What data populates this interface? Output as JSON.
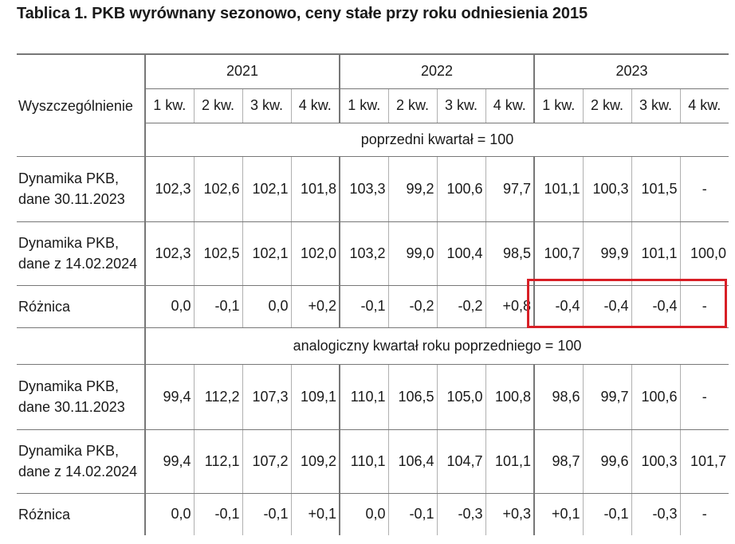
{
  "title": "Tablica 1. PKB wyrównany sezonowo, ceny stałe przy roku odniesienia 2015",
  "header": {
    "description_label": "Wyszczególnienie",
    "years": [
      "2021",
      "2022",
      "2023"
    ],
    "quarters": [
      "1 kw.",
      "2 kw.",
      "3 kw.",
      "4 kw.",
      "1 kw.",
      "2 kw.",
      "3 kw.",
      "4 kw.",
      "1 kw.",
      "2 kw.",
      "3 kw.",
      "4 kw."
    ]
  },
  "sections": [
    {
      "unit_label": "poprzedni kwartał = 100",
      "rows": [
        {
          "label_line1": "Dynamika PKB,",
          "label_line2": "dane 30.11.2023",
          "values": [
            "102,3",
            "102,6",
            "102,1",
            "101,8",
            "103,3",
            "99,2",
            "100,6",
            "97,7",
            "101,1",
            "100,3",
            "101,5",
            "-"
          ]
        },
        {
          "label_line1": "Dynamika PKB,",
          "label_line2": "dane z 14.02.2024",
          "values": [
            "102,3",
            "102,5",
            "102,1",
            "102,0",
            "103,2",
            "99,0",
            "100,4",
            "98,5",
            "100,7",
            "99,9",
            "101,1",
            "100,0"
          ]
        },
        {
          "label_line1": "Różnica",
          "label_line2": "",
          "values": [
            "0,0",
            "-0,1",
            "0,0",
            "+0,2",
            "-0,1",
            "-0,2",
            "-0,2",
            "+0,8",
            "-0,4",
            "-0,4",
            "-0,4",
            "-"
          ]
        }
      ]
    },
    {
      "unit_label": "analogiczny kwartał roku poprzedniego = 100",
      "rows": [
        {
          "label_line1": "Dynamika PKB,",
          "label_line2": "dane 30.11.2023",
          "values": [
            "99,4",
            "112,2",
            "107,3",
            "109,1",
            "110,1",
            "106,5",
            "105,0",
            "100,8",
            "98,6",
            "99,7",
            "100,6",
            "-"
          ]
        },
        {
          "label_line1": "Dynamika PKB,",
          "label_line2": "dane z 14.02.2024",
          "values": [
            "99,4",
            "112,1",
            "107,2",
            "109,2",
            "110,1",
            "106,4",
            "104,7",
            "101,1",
            "98,7",
            "99,6",
            "100,3",
            "101,7"
          ]
        },
        {
          "label_line1": "Różnica",
          "label_line2": "",
          "values": [
            "0,0",
            "-0,1",
            "-0,1",
            "+0,1",
            "0,0",
            "-0,1",
            "-0,3",
            "+0,3",
            "+0,1",
            "-0,1",
            "-0,3",
            "-"
          ]
        }
      ]
    }
  ],
  "highlight_color": "#d81f26"
}
